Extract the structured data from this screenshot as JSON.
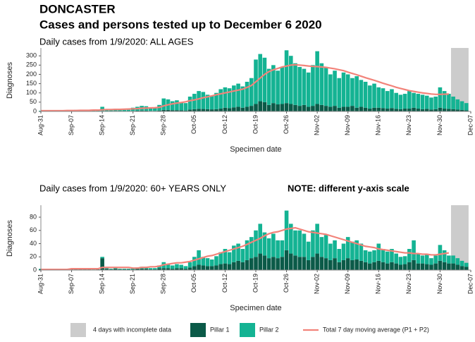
{
  "header": {
    "title": "DONCASTER",
    "subtitle": "Cases and persons tested up to December  6 2020"
  },
  "legend_incomplete": "4 days with incomplete data",
  "chart_data": [
    {
      "type": "bar",
      "stacked": true,
      "subtitle": "Daily cases from 1/9/2020: ALL AGES",
      "xlabel": "Specimen date",
      "ylabel": "Diagnoses",
      "categories": [
        "Aug-31",
        null,
        null,
        null,
        null,
        null,
        null,
        "Sep-07",
        null,
        null,
        null,
        null,
        null,
        null,
        "Sep-14",
        null,
        null,
        null,
        null,
        null,
        null,
        "Sep-21",
        null,
        null,
        null,
        null,
        null,
        null,
        "Sep-28",
        null,
        null,
        null,
        null,
        null,
        null,
        "Oct-05",
        null,
        null,
        null,
        null,
        null,
        null,
        "Oct-12",
        null,
        null,
        null,
        null,
        null,
        null,
        "Oct-19",
        null,
        null,
        null,
        null,
        null,
        null,
        "Oct-26",
        null,
        null,
        null,
        null,
        null,
        null,
        "Nov-02",
        null,
        null,
        null,
        null,
        null,
        null,
        "Nov-09",
        null,
        null,
        null,
        null,
        null,
        null,
        "Nov-16",
        null,
        null,
        null,
        null,
        null,
        null,
        "Nov-23",
        null,
        null,
        null,
        null,
        null,
        null,
        "Nov-30",
        null,
        null,
        null,
        null,
        null,
        null,
        "Dec-07"
      ],
      "ylim": [
        0,
        335
      ],
      "yticks": [
        0,
        50,
        100,
        150,
        200,
        250,
        300
      ],
      "series": [
        {
          "name": "Pillar 1",
          "color": "#0b5a48",
          "values": [
            1,
            1,
            1,
            2,
            1,
            1,
            1,
            1,
            2,
            1,
            2,
            2,
            1,
            1,
            3,
            2,
            2,
            3,
            2,
            1,
            2,
            3,
            4,
            5,
            4,
            3,
            3,
            5,
            8,
            8,
            7,
            7,
            6,
            5,
            10,
            12,
            14,
            13,
            12,
            11,
            12,
            15,
            20,
            18,
            22,
            25,
            20,
            25,
            30,
            40,
            55,
            50,
            35,
            45,
            38,
            40,
            45,
            40,
            35,
            30,
            35,
            25,
            30,
            40,
            35,
            30,
            25,
            30,
            20,
            25,
            25,
            30,
            20,
            25,
            20,
            15,
            20,
            20,
            18,
            15,
            18,
            14,
            12,
            15,
            15,
            20,
            15,
            12,
            14,
            10,
            12,
            20,
            15,
            14,
            12,
            10,
            8,
            6,
            null
          ]
        },
        {
          "name": "Pillar 2",
          "color": "#14b393",
          "values": [
            2,
            4,
            3,
            4,
            4,
            2,
            3,
            5,
            6,
            6,
            7,
            6,
            4,
            5,
            22,
            10,
            8,
            11,
            10,
            7,
            7,
            17,
            21,
            25,
            24,
            19,
            15,
            30,
            62,
            57,
            48,
            53,
            44,
            40,
            70,
            83,
            96,
            92,
            78,
            74,
            88,
            105,
            110,
            107,
            118,
            125,
            115,
            135,
            150,
            240,
            255,
            240,
            195,
            205,
            182,
            200,
            285,
            260,
            225,
            210,
            195,
            185,
            220,
            285,
            225,
            210,
            175,
            190,
            160,
            185,
            175,
            150,
            170,
            145,
            140,
            125,
            130,
            110,
            107,
            95,
            102,
            86,
            78,
            80,
            95,
            80,
            80,
            78,
            71,
            65,
            68,
            110,
            95,
            81,
            68,
            55,
            47,
            39,
            null
          ]
        },
        {
          "name": "Total 7 day moving average (P1 + P2)",
          "type": "line",
          "color": "#f2837a",
          "values": [
            4,
            4,
            4,
            4,
            4,
            4,
            5,
            5,
            5,
            6,
            6,
            6,
            7,
            7,
            9,
            10,
            10,
            11,
            11,
            12,
            13,
            14,
            15,
            17,
            18,
            19,
            20,
            22,
            30,
            36,
            41,
            45,
            48,
            52,
            58,
            62,
            68,
            74,
            79,
            84,
            90,
            95,
            100,
            105,
            110,
            115,
            120,
            130,
            140,
            160,
            180,
            200,
            215,
            225,
            232,
            240,
            245,
            250,
            252,
            250,
            248,
            245,
            243,
            242,
            240,
            238,
            234,
            230,
            225,
            220,
            212,
            205,
            198,
            190,
            182,
            175,
            168,
            160,
            152,
            145,
            138,
            130,
            124,
            118,
            112,
            108,
            104,
            100,
            97,
            94,
            92,
            92,
            93,
            94,
            null,
            null,
            null,
            null,
            null
          ]
        }
      ]
    },
    {
      "type": "bar",
      "stacked": true,
      "subtitle": "Daily cases from 1/9/2020: 60+ YEARS ONLY",
      "note": "NOTE: different y-axis scale",
      "xlabel": "Specimen date",
      "ylabel": "Diagnoses",
      "categories": [
        "Aug-31",
        null,
        null,
        null,
        null,
        null,
        null,
        "Sep-07",
        null,
        null,
        null,
        null,
        null,
        null,
        "Sep-14",
        null,
        null,
        null,
        null,
        null,
        null,
        "Sep-21",
        null,
        null,
        null,
        null,
        null,
        null,
        "Sep-28",
        null,
        null,
        null,
        null,
        null,
        null,
        "Oct-05",
        null,
        null,
        null,
        null,
        null,
        null,
        "Oct-12",
        null,
        null,
        null,
        null,
        null,
        null,
        "Oct-19",
        null,
        null,
        null,
        null,
        null,
        null,
        "Oct-26",
        null,
        null,
        null,
        null,
        null,
        null,
        "Nov-02",
        null,
        null,
        null,
        null,
        null,
        null,
        "Nov-09",
        null,
        null,
        null,
        null,
        null,
        null,
        "Nov-16",
        null,
        null,
        null,
        null,
        null,
        null,
        "Nov-23",
        null,
        null,
        null,
        null,
        null,
        null,
        "Nov-30",
        null,
        null,
        null,
        null,
        null,
        null,
        "Dec-07"
      ],
      "ylim": [
        0,
        96
      ],
      "yticks": [
        0,
        20,
        40,
        60,
        80
      ],
      "series": [
        {
          "color": "#0b5a48",
          "values": [
            1,
            0,
            1,
            1,
            0,
            1,
            1,
            1,
            1,
            1,
            1,
            1,
            0,
            1,
            18,
            2,
            1,
            2,
            1,
            1,
            1,
            1,
            2,
            2,
            2,
            1,
            1,
            3,
            3,
            3,
            2,
            3,
            3,
            2,
            4,
            6,
            8,
            7,
            6,
            6,
            7,
            9,
            10,
            9,
            12,
            14,
            12,
            15,
            18,
            20,
            25,
            22,
            18,
            20,
            18,
            20,
            30,
            25,
            22,
            20,
            20,
            15,
            20,
            25,
            20,
            18,
            15,
            18,
            12,
            15,
            18,
            15,
            16,
            14,
            12,
            10,
            12,
            14,
            12,
            10,
            12,
            10,
            8,
            9,
            12,
            15,
            10,
            10,
            9,
            8,
            10,
            14,
            12,
            10,
            10,
            8,
            6,
            5,
            null
          ]
        },
        {
          "color": "#14b393",
          "values": [
            1,
            1,
            0,
            1,
            1,
            0,
            1,
            1,
            1,
            1,
            1,
            1,
            1,
            0,
            2,
            1,
            1,
            1,
            1,
            1,
            1,
            2,
            2,
            3,
            3,
            2,
            2,
            4,
            9,
            6,
            5,
            6,
            5,
            4,
            8,
            14,
            22,
            13,
            12,
            10,
            14,
            18,
            22,
            18,
            25,
            26,
            20,
            30,
            32,
            40,
            45,
            35,
            30,
            35,
            27,
            25,
            60,
            45,
            38,
            40,
            35,
            28,
            40,
            45,
            30,
            35,
            25,
            27,
            20,
            25,
            32,
            28,
            29,
            26,
            18,
            18,
            18,
            26,
            20,
            18,
            20,
            15,
            12,
            12,
            20,
            30,
            15,
            12,
            14,
            10,
            12,
            24,
            18,
            12,
            12,
            10,
            8,
            6,
            null
          ]
        },
        {
          "type": "line",
          "color": "#f2837a",
          "values": [
            1,
            1,
            1,
            1,
            1,
            1,
            1,
            2,
            2,
            2,
            2,
            2,
            2,
            2,
            4,
            4,
            4,
            4,
            4,
            4,
            4,
            3,
            3,
            4,
            4,
            5,
            5,
            6,
            8,
            9,
            10,
            11,
            11,
            12,
            13,
            15,
            17,
            19,
            21,
            22,
            24,
            26,
            28,
            30,
            32,
            34,
            36,
            39,
            42,
            45,
            48,
            52,
            55,
            57,
            58,
            60,
            62,
            63,
            64,
            62,
            60,
            58,
            57,
            56,
            55,
            54,
            52,
            50,
            48,
            46,
            44,
            42,
            40,
            38,
            36,
            35,
            34,
            32,
            31,
            30,
            29,
            28,
            27,
            26,
            26,
            25,
            25,
            24,
            24,
            23,
            23,
            24,
            25,
            26,
            null,
            null,
            null,
            null,
            null
          ]
        }
      ]
    }
  ]
}
